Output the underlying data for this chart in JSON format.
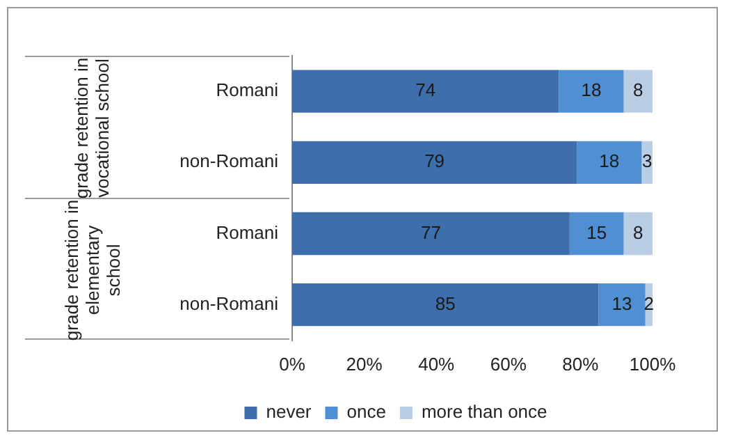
{
  "chart_data": {
    "type": "bar",
    "orientation": "horizontal",
    "stacked": true,
    "categories": [
      "Romani",
      "non-Romani",
      "Romani",
      "non-Romani"
    ],
    "series": [
      {
        "name": "never",
        "color": "#3e6eab",
        "values": [
          74,
          79,
          77,
          85
        ]
      },
      {
        "name": "once",
        "color": "#4f8fd2",
        "values": [
          18,
          18,
          15,
          13
        ]
      },
      {
        "name": "more than once",
        "color": "#b9cde5",
        "values": [
          8,
          3,
          8,
          2
        ]
      }
    ],
    "xlim": [
      0,
      100
    ],
    "xticks": [
      {
        "value": 0,
        "label": "0%"
      },
      {
        "value": 20,
        "label": "20%"
      },
      {
        "value": 40,
        "label": "40%"
      },
      {
        "value": 60,
        "label": "60%"
      },
      {
        "value": 80,
        "label": "80%"
      },
      {
        "value": 100,
        "label": "100%"
      }
    ],
    "data_labels": true,
    "legend": "bottom",
    "grid": false,
    "annotations": [
      "grade retention in vocational school",
      "grade retention in elementary school"
    ]
  }
}
